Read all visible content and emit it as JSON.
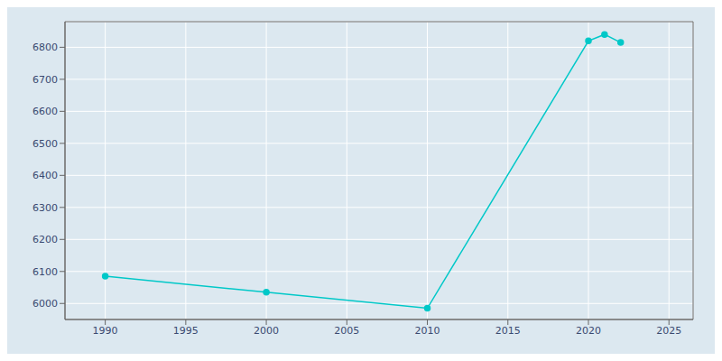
{
  "chart_data": {
    "type": "line",
    "x": [
      1990,
      2000,
      2010,
      2020,
      2021,
      2022
    ],
    "values": [
      6085,
      6035,
      5985,
      6820,
      6840,
      6815
    ],
    "color": "#00C8C8",
    "marker": "circle",
    "xlim": [
      1987.5,
      2026.5
    ],
    "ylim": [
      5950,
      6880
    ],
    "xticks": [
      1990,
      1995,
      2000,
      2005,
      2010,
      2015,
      2020,
      2025
    ],
    "yticks": [
      6000,
      6100,
      6200,
      6300,
      6400,
      6500,
      6600,
      6700,
      6800
    ],
    "grid": true
  }
}
